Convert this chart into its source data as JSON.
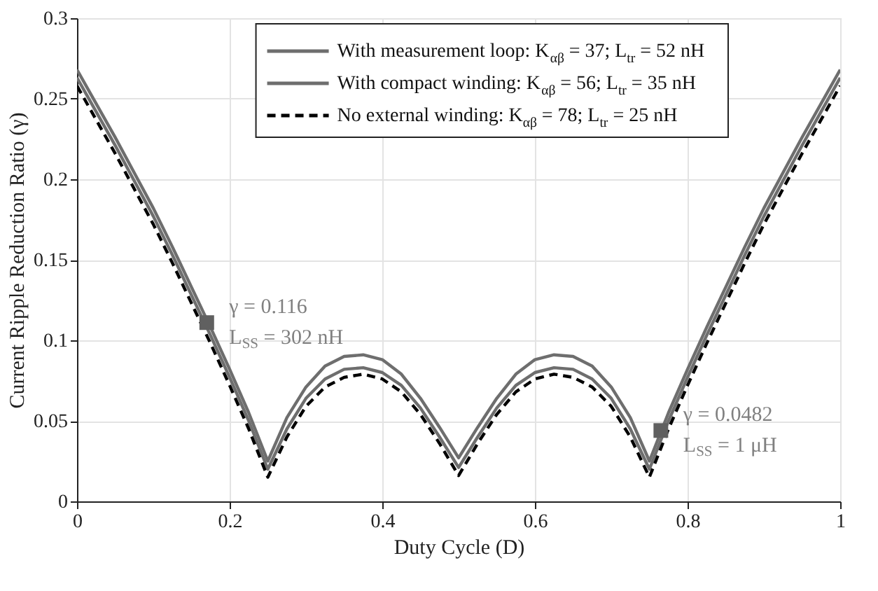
{
  "chart_data": {
    "type": "line",
    "xlabel": "Duty Cycle (D)",
    "ylabel": "Current Ripple Reduction Ratio (γ)",
    "x": [
      0,
      0.025,
      0.05,
      0.075,
      0.1,
      0.125,
      0.15,
      0.175,
      0.2,
      0.225,
      0.25,
      0.275,
      0.3,
      0.325,
      0.35,
      0.375,
      0.4,
      0.425,
      0.45,
      0.475,
      0.5,
      0.525,
      0.55,
      0.575,
      0.6,
      0.625,
      0.65,
      0.675,
      0.7,
      0.725,
      0.75,
      0.775,
      0.8,
      0.825,
      0.85,
      0.875,
      0.9,
      0.925,
      0.95,
      0.975,
      1
    ],
    "series": [
      {
        "name": "With measurement loop: K$_{αβ}$ = 37; L$_{tr}$ = 52 nH",
        "color": "#6e6e6e",
        "line_style": "solid",
        "values": [
          0.268,
          0.247,
          0.226,
          0.204,
          0.182,
          0.158,
          0.133,
          0.108,
          0.082,
          0.055,
          0.025,
          0.052,
          0.071,
          0.084,
          0.09,
          0.091,
          0.088,
          0.079,
          0.064,
          0.046,
          0.027,
          0.046,
          0.064,
          0.079,
          0.088,
          0.091,
          0.09,
          0.084,
          0.071,
          0.052,
          0.025,
          0.055,
          0.082,
          0.108,
          0.133,
          0.158,
          0.182,
          0.204,
          0.226,
          0.247,
          0.268
        ]
      },
      {
        "name": "With compact winding: K$_{αβ}$ = 56; L$_{tr}$ = 35 nH",
        "color": "#6e6e6e",
        "line_style": "solid",
        "values": [
          0.263,
          0.242,
          0.221,
          0.199,
          0.177,
          0.153,
          0.128,
          0.103,
          0.077,
          0.05,
          0.02,
          0.045,
          0.064,
          0.076,
          0.082,
          0.083,
          0.08,
          0.072,
          0.058,
          0.04,
          0.021,
          0.04,
          0.058,
          0.072,
          0.08,
          0.083,
          0.082,
          0.076,
          0.064,
          0.045,
          0.02,
          0.05,
          0.077,
          0.103,
          0.128,
          0.153,
          0.177,
          0.199,
          0.221,
          0.242,
          0.263
        ]
      },
      {
        "name": "No external winding: K$_{αβ}$ = 78; L$_{tr}$ = 25 nH",
        "color": "#000000",
        "line_style": "dashed",
        "values": [
          0.258,
          0.237,
          0.216,
          0.194,
          0.172,
          0.148,
          0.123,
          0.098,
          0.072,
          0.045,
          0.015,
          0.04,
          0.059,
          0.071,
          0.077,
          0.079,
          0.076,
          0.068,
          0.054,
          0.036,
          0.016,
          0.036,
          0.054,
          0.068,
          0.076,
          0.079,
          0.077,
          0.071,
          0.059,
          0.04,
          0.015,
          0.045,
          0.072,
          0.098,
          0.123,
          0.148,
          0.172,
          0.194,
          0.216,
          0.237,
          0.258
        ]
      },
      {
        "type": "scatter",
        "marker": "square",
        "color": "#606060",
        "x": [
          0.17,
          0.765
        ],
        "values": [
          0.111,
          0.044
        ]
      }
    ],
    "annotations": [
      {
        "text": "γ = 0.116\nL$_{SS}$ = 302 nH",
        "x": 0.17,
        "y": 0.111
      },
      {
        "text": "γ = 0.0482\nL$_{SS}$ = 1 μH",
        "x": 0.765,
        "y": 0.044
      }
    ],
    "xlim": [
      0,
      1
    ],
    "xticks": [
      0,
      0.2,
      0.4,
      0.6,
      0.8,
      1
    ],
    "ylim": [
      0,
      0.3
    ],
    "yticks": [
      0,
      0.05,
      0.1,
      0.15,
      0.2,
      0.25,
      0.3
    ],
    "grid": true,
    "legend": "top right"
  }
}
